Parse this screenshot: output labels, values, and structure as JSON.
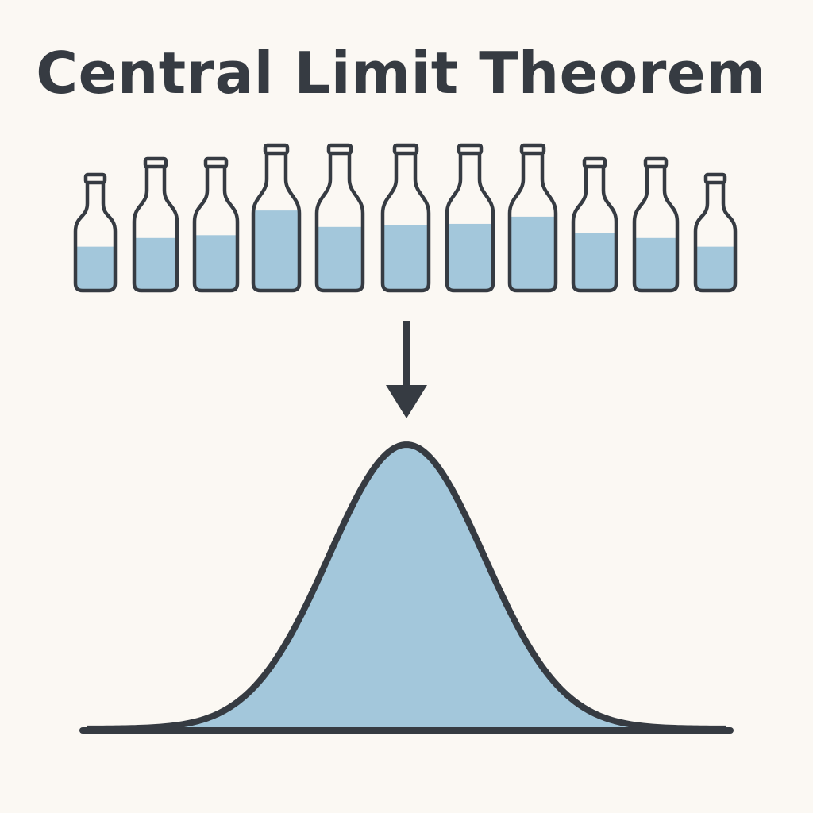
{
  "title": "Central Limit Theorem",
  "colors": {
    "background": "#fbf8f3",
    "outline": "#363b42",
    "water": "#a3c7db"
  },
  "bottles": {
    "count": 11,
    "fill_levels": [
      0.55,
      0.57,
      0.6,
      0.78,
      0.62,
      0.64,
      0.65,
      0.72,
      0.62,
      0.57,
      0.55
    ],
    "sizes": [
      "small",
      "medium",
      "medium",
      "large",
      "large",
      "large",
      "large",
      "large",
      "medium",
      "medium",
      "small"
    ]
  },
  "arrow": {
    "direction": "down",
    "icon": "arrow-down-icon"
  },
  "curve": {
    "type": "normal-distribution",
    "fill_color": "#a3c7db"
  }
}
